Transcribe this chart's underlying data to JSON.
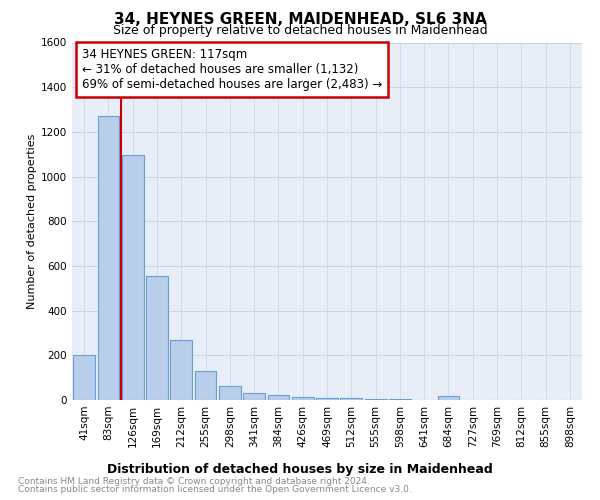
{
  "title": "34, HEYNES GREEN, MAIDENHEAD, SL6 3NA",
  "subtitle": "Size of property relative to detached houses in Maidenhead",
  "xlabel": "Distribution of detached houses by size in Maidenhead",
  "ylabel": "Number of detached properties",
  "footer_line1": "Contains HM Land Registry data © Crown copyright and database right 2024.",
  "footer_line2": "Contains public sector information licensed under the Open Government Licence v3.0.",
  "categories": [
    "41sqm",
    "83sqm",
    "126sqm",
    "169sqm",
    "212sqm",
    "255sqm",
    "298sqm",
    "341sqm",
    "384sqm",
    "426sqm",
    "469sqm",
    "512sqm",
    "555sqm",
    "598sqm",
    "641sqm",
    "684sqm",
    "727sqm",
    "769sqm",
    "812sqm",
    "855sqm",
    "898sqm"
  ],
  "values": [
    200,
    1270,
    1095,
    555,
    270,
    130,
    63,
    32,
    22,
    13,
    10,
    8,
    5,
    4,
    0,
    20,
    0,
    0,
    0,
    0,
    0
  ],
  "bar_color": "#b8ceea",
  "bar_edge_color": "#6b9fd4",
  "vline_x": 2,
  "annotation_line1": "34 HEYNES GREEN: 117sqm",
  "annotation_line2": "← 31% of detached houses are smaller (1,132)",
  "annotation_line3": "69% of semi-detached houses are larger (2,483) →",
  "annotation_box_color": "#ffffff",
  "annotation_box_edge_color": "#cc0000",
  "vline_color": "#cc0000",
  "ylim": [
    0,
    1600
  ],
  "yticks": [
    0,
    200,
    400,
    600,
    800,
    1000,
    1200,
    1400,
    1600
  ],
  "grid_color": "#c8d4e8",
  "bg_color": "#e8eef8",
  "title_fontsize": 11,
  "subtitle_fontsize": 9,
  "xlabel_fontsize": 9,
  "ylabel_fontsize": 8,
  "tick_fontsize": 7.5,
  "annotation_fontsize": 8.5,
  "footer_fontsize": 6.5
}
